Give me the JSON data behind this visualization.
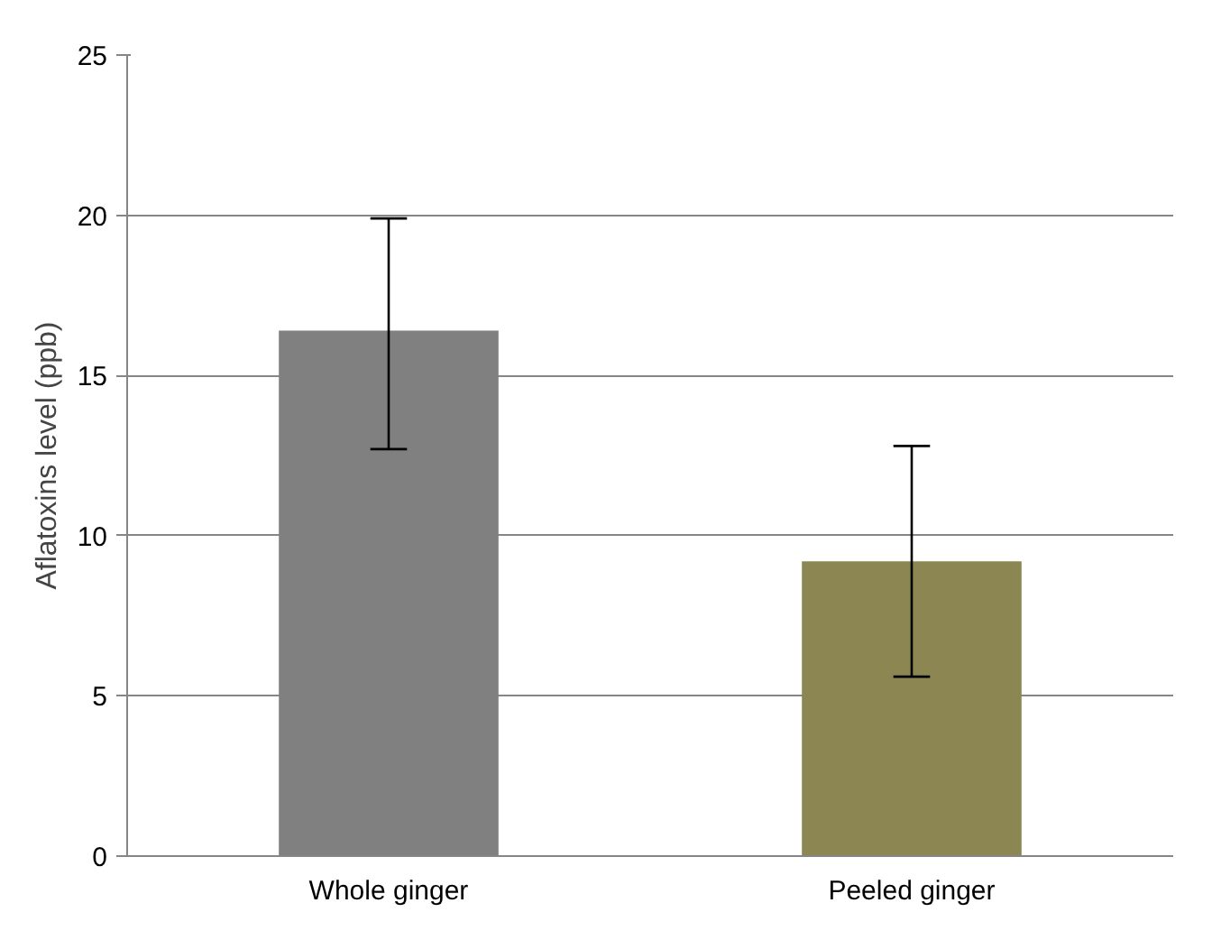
{
  "chart_data": {
    "type": "bar",
    "ylabel": "Aflatoxins level (ppb)",
    "categories": [
      "Whole ginger",
      "Peeled ginger"
    ],
    "values": [
      16.4,
      9.2
    ],
    "colors": [
      "#808080",
      "#8b8652"
    ],
    "errors": [
      [
        12.7,
        19.9
      ],
      [
        5.6,
        12.8
      ]
    ],
    "ylim": [
      0,
      25
    ],
    "yticks": [
      0,
      5,
      10,
      15,
      20,
      25
    ],
    "grid": "y"
  }
}
